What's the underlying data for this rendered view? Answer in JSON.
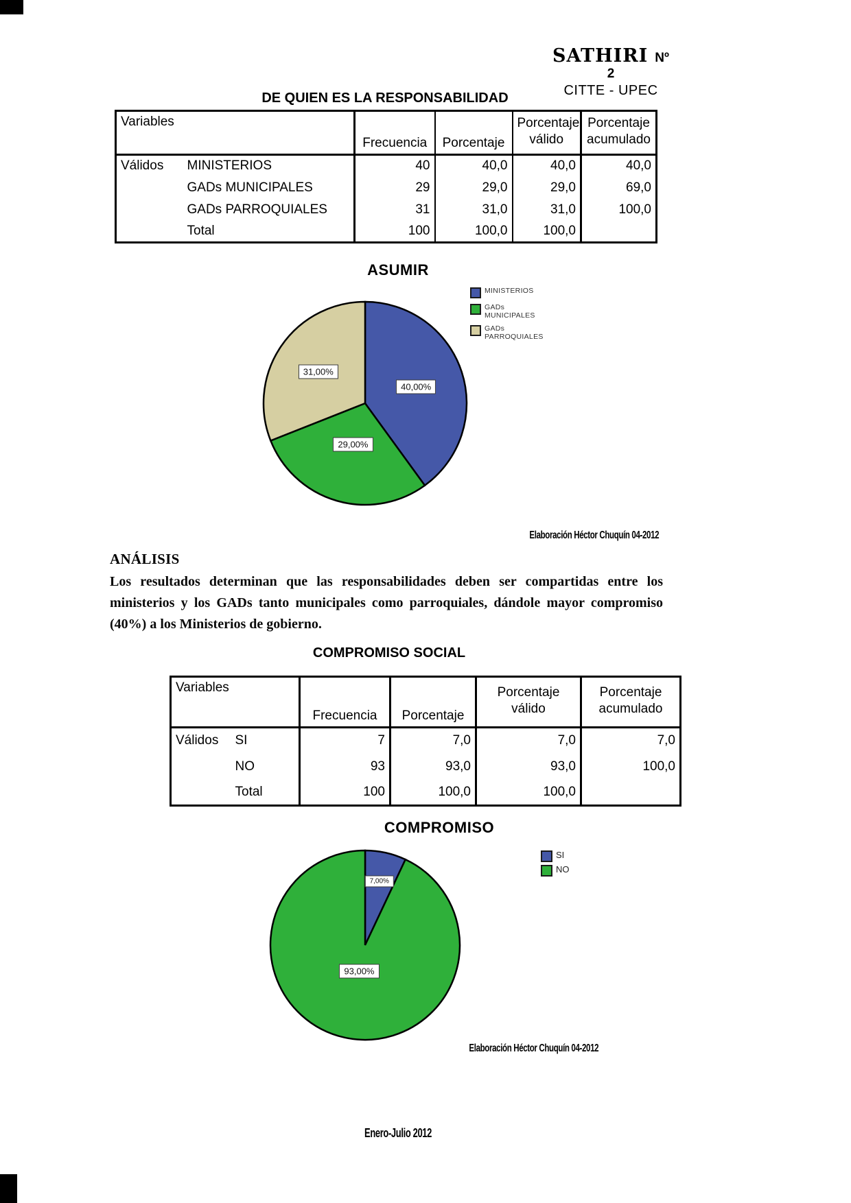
{
  "header": {
    "journal_title": "SATHIRI",
    "issue": "Nº 2",
    "org": "CITTE - UPEC"
  },
  "section1": {
    "title": "DE QUIEN ES LA RESPONSABILIDAD",
    "table": {
      "col_headers": [
        "Variables",
        "Frecuencia",
        "Porcentaje",
        "Porcentaje válido",
        "Porcentaje acumulado"
      ],
      "group_label": "Válidos",
      "rows": [
        [
          "MINISTERIOS",
          "40",
          "40,0",
          "40,0",
          "40,0"
        ],
        [
          "GADs MUNICIPALES",
          "29",
          "29,0",
          "29,0",
          "69,0"
        ],
        [
          "GADs PARROQUIALES",
          "31",
          "31,0",
          "31,0",
          "100,0"
        ],
        [
          "Total",
          "100",
          "100,0",
          "100,0",
          ""
        ]
      ]
    },
    "caption": "Elaboración Héctor Chuquín 04-2012"
  },
  "analysis": {
    "heading": "ANÁLISIS",
    "body": "Los resultados determinan que las responsabilidades deben ser compartidas entre los ministerios y los GADs tanto municipales como parroquiales, dándole mayor compromiso (40%) a los Ministerios de gobierno."
  },
  "section2": {
    "title": "COMPROMISO SOCIAL",
    "table": {
      "col_headers": [
        "Variables",
        "Frecuencia",
        "Porcentaje",
        "Porcentaje válido",
        "Porcentaje acumulado"
      ],
      "group_label": "Válidos",
      "rows": [
        [
          "SI",
          "7",
          "7,0",
          "7,0",
          "7,0"
        ],
        [
          "NO",
          "93",
          "93,0",
          "93,0",
          "100,0"
        ],
        [
          "Total",
          "100",
          "100,0",
          "100,0",
          ""
        ]
      ]
    },
    "caption": "Elaboración Héctor Chuquín 04-2012"
  },
  "footer": "Enero-Julio 2012",
  "colors": {
    "blue": "#4558a8",
    "green": "#2fb03a",
    "tan": "#d6cfa2"
  },
  "chart_data": [
    {
      "type": "pie",
      "title": "ASUMIR",
      "categories": [
        "MINISTERIOS",
        "GADs MUNICIPALES",
        "GADs PARROQUIALES"
      ],
      "values": [
        40,
        29,
        31
      ],
      "slice_labels": [
        "40,00%",
        "29,00%",
        "31,00%"
      ],
      "colors": [
        "#4558a8",
        "#2fb03a",
        "#d6cfa2"
      ],
      "legend_lines": [
        [
          "MINISTERIOS"
        ],
        [
          "GADs",
          "MUNICIPALES"
        ],
        [
          "GADs",
          "PARROQUIALES"
        ]
      ],
      "legend_position": "right",
      "start_angle": "12-oclock",
      "direction": "clockwise",
      "source": "Elaboración Héctor Chuquín 04-2012"
    },
    {
      "type": "pie",
      "title": "COMPROMISO",
      "categories": [
        "SI",
        "NO"
      ],
      "values": [
        7,
        93
      ],
      "slice_labels": [
        "7,00%",
        "93,00%"
      ],
      "colors": [
        "#4558a8",
        "#2fb03a"
      ],
      "legend_lines": [
        [
          "SI"
        ],
        [
          "NO"
        ]
      ],
      "legend_position": "right",
      "start_angle": "12-oclock",
      "direction": "clockwise",
      "source": "Elaboración Héctor Chuquín 04-2012"
    }
  ]
}
